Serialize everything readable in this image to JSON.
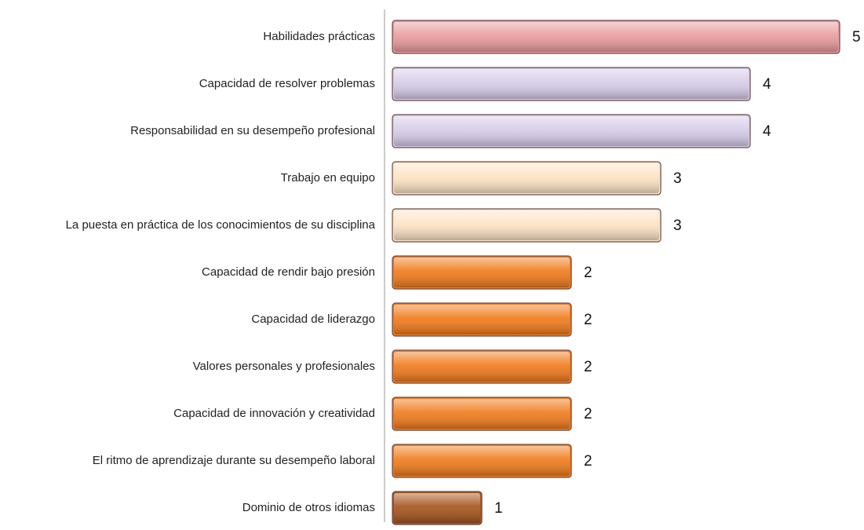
{
  "chart_data": {
    "type": "bar",
    "orientation": "horizontal",
    "categories": [
      "Habilidades prácticas",
      "Capacidad de resolver problemas",
      "Responsabilidad en su desempeño profesional",
      "Trabajo en equipo",
      "La puesta en práctica de los conocimientos de su disciplina",
      "Capacidad de rendir bajo presión",
      "Capacidad de liderazgo",
      "Valores personales y profesionales",
      "Capacidad de innovación y creatividad",
      "El ritmo de aprendizaje durante su desempeño laboral",
      "Dominio de otros idiomas"
    ],
    "values": [
      5,
      4,
      4,
      3,
      3,
      2,
      2,
      2,
      2,
      2,
      1
    ],
    "colors": [
      "#e89a9c",
      "#d6cbe9",
      "#d6cbe9",
      "#fde3c4",
      "#fde3c4",
      "#f07a1a",
      "#f07a1a",
      "#f07a1a",
      "#f07a1a",
      "#f07a1a",
      "#a4531c"
    ],
    "xlim": [
      0,
      5
    ]
  }
}
